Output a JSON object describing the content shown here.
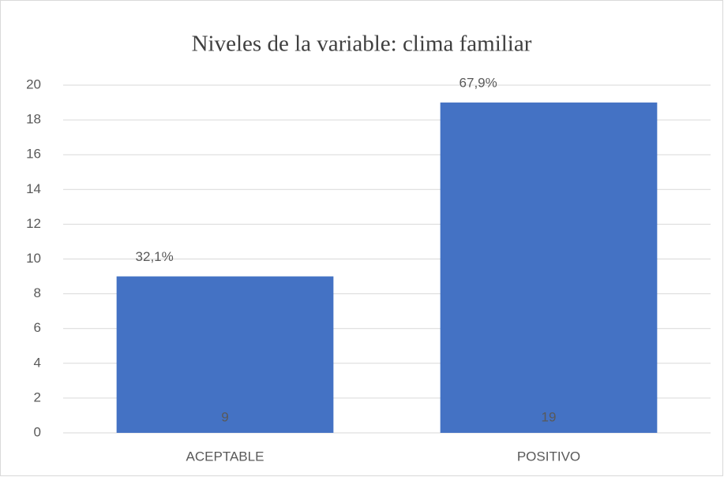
{
  "chart_data": {
    "type": "bar",
    "title": "Niveles de la variable: clima familiar",
    "categories": [
      "ACEPTABLE",
      "POSITIVO"
    ],
    "values": [
      9,
      19
    ],
    "color": "#4472c4",
    "annotations": [
      "32,1%",
      "67,9%"
    ],
    "ylim": [
      0,
      20
    ],
    "yticks": [
      0,
      2,
      4,
      6,
      8,
      10,
      12,
      14,
      16,
      18,
      20
    ],
    "grid": true
  }
}
